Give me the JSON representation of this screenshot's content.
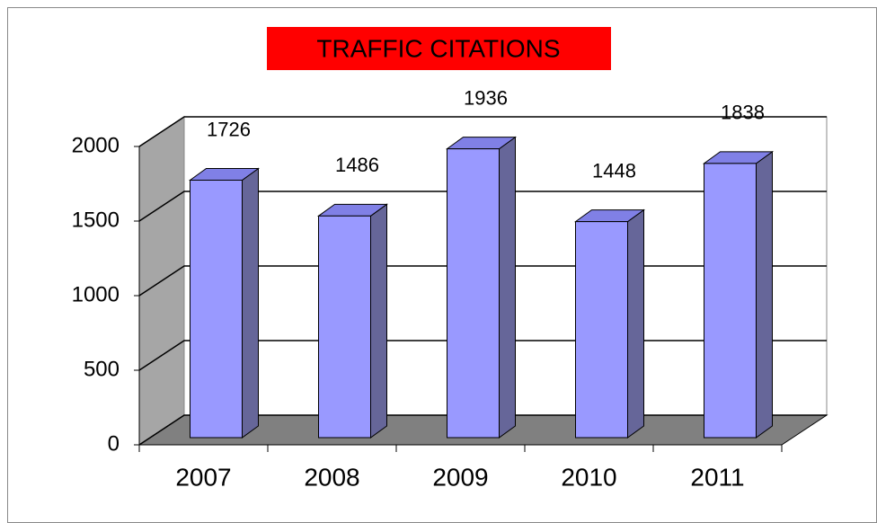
{
  "chart_data": {
    "type": "bar3d",
    "title": "TRAFFIC CITATIONS",
    "categories": [
      "2007",
      "2008",
      "2009",
      "2010",
      "2011"
    ],
    "values": [
      1726,
      1486,
      1936,
      1448,
      1838
    ],
    "color": "#9999ff",
    "ylim": [
      0,
      2000
    ],
    "yticks": [
      0,
      500,
      1000,
      1500,
      2000
    ],
    "grid": true
  }
}
